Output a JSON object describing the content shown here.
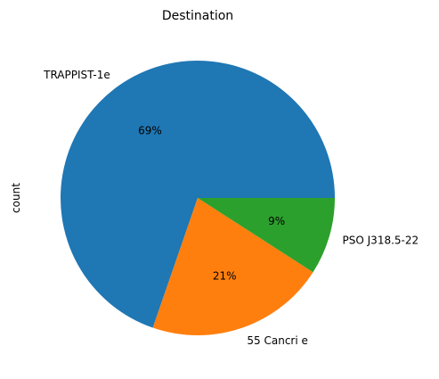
{
  "chart_data": {
    "type": "pie",
    "title": "Destination",
    "ylabel": "count",
    "categories": [
      "TRAPPIST-1e",
      "55 Cancri e",
      "PSO J318.5-22"
    ],
    "values": [
      69,
      21,
      9
    ],
    "percent_labels": [
      "69%",
      "21%",
      "9%"
    ],
    "colors": [
      "#1f77b4",
      "#ff7f0e",
      "#2ca02c"
    ],
    "start_angle_deg": 0,
    "direction": "counterclockwise"
  }
}
